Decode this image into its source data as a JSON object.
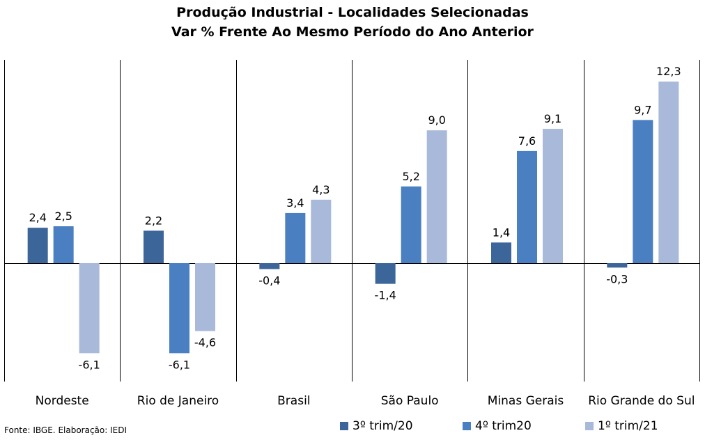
{
  "title": "Produção Industrial - Localidades Selecionadas",
  "subtitle": "Var % Frente Ao Mesmo Período do Ano Anterior",
  "source": "Fonte: IBGE. Elaboração: IEDI",
  "colors": {
    "s1": "#3c6699",
    "s2": "#4a7fc1",
    "s3": "#a9b9d9"
  },
  "chart_data": {
    "type": "bar",
    "title": "Produção Industrial - Localidades Selecionadas",
    "subtitle": "Var % Frente Ao Mesmo Período do Ano Anterior",
    "categories": [
      "Nordeste",
      "Rio de Janeiro",
      "Brasil",
      "São Paulo",
      "Minas Gerais",
      "Rio Grande do Sul"
    ],
    "series": [
      {
        "name": "3º trim/20",
        "values": [
          2.4,
          2.2,
          -0.4,
          -1.4,
          1.4,
          -0.3
        ],
        "labels": [
          "2,4",
          "2,2",
          "-0,4",
          "-1,4",
          "1,4",
          "-0,3"
        ]
      },
      {
        "name": "4º trim20",
        "values": [
          2.5,
          -6.1,
          3.4,
          5.2,
          7.6,
          9.7
        ],
        "labels": [
          "2,5",
          "-6,1",
          "3,4",
          "5,2",
          "7,6",
          "9,7"
        ]
      },
      {
        "name": "1º trim/21",
        "values": [
          -6.1,
          -4.6,
          4.3,
          9.0,
          9.1,
          12.3
        ],
        "labels": [
          "-6,1",
          "-4,6",
          "4,3",
          "9,0",
          "9,1",
          "12,3"
        ]
      }
    ],
    "ylim": [
      -7.5,
      14.5
    ],
    "grid": false,
    "legend": "bottom"
  }
}
